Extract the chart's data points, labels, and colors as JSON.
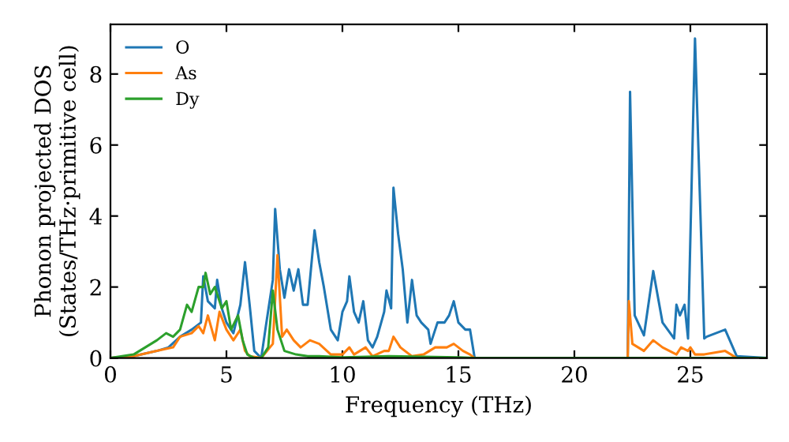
{
  "chart_data": {
    "type": "line",
    "xlabel": "Frequency (THz)",
    "ylabel": "Phonon projected DOS\n(States/THz·primitive cell)",
    "xlim": [
      0,
      28.3
    ],
    "ylim": [
      0,
      9.4
    ],
    "xticks": [
      0,
      5,
      10,
      15,
      20,
      25
    ],
    "yticks": [
      0,
      2,
      4,
      6,
      8
    ],
    "grid": false,
    "legend": "top left",
    "marker": "none",
    "line_style": "solid",
    "series": [
      {
        "name": "O",
        "color": "#1f77b4",
        "x": [
          0,
          1,
          2,
          2.5,
          3,
          3.5,
          3.9,
          4.0,
          4.2,
          4.5,
          4.6,
          4.8,
          5.0,
          5.3,
          5.6,
          5.8,
          6.0,
          6.2,
          6.5,
          6.7,
          7.0,
          7.1,
          7.3,
          7.5,
          7.7,
          7.9,
          8.1,
          8.3,
          8.5,
          8.8,
          9.0,
          9.2,
          9.5,
          9.8,
          10.0,
          10.2,
          10.3,
          10.5,
          10.7,
          10.9,
          11.1,
          11.3,
          11.5,
          11.8,
          11.9,
          12.1,
          12.2,
          12.4,
          12.6,
          12.8,
          13.0,
          13.2,
          13.4,
          13.7,
          13.8,
          14.1,
          14.4,
          14.6,
          14.8,
          15.0,
          15.3,
          15.5,
          15.7,
          22.3,
          22.4,
          22.6,
          23.0,
          23.4,
          23.8,
          24.3,
          24.4,
          24.55,
          24.75,
          24.9,
          25.2,
          25.6,
          25.7,
          26.5,
          27.0,
          28.3
        ],
        "values": [
          0,
          0.05,
          0.2,
          0.3,
          0.6,
          0.8,
          1.0,
          2.3,
          1.6,
          1.4,
          2.2,
          1.4,
          1.0,
          0.7,
          1.5,
          2.7,
          1.5,
          0.2,
          0,
          0.9,
          2.2,
          4.2,
          2.5,
          1.7,
          2.5,
          1.9,
          2.5,
          1.5,
          1.5,
          3.6,
          2.7,
          2.0,
          0.8,
          0.5,
          1.3,
          1.6,
          2.3,
          1.3,
          1.0,
          1.6,
          0.5,
          0.3,
          0.6,
          1.3,
          1.9,
          1.4,
          4.8,
          3.5,
          2.5,
          1.0,
          2.2,
          1.2,
          1.0,
          0.8,
          0.4,
          1.0,
          1.0,
          1.2,
          1.6,
          1.0,
          0.8,
          0.8,
          0,
          0,
          7.5,
          1.2,
          0.64,
          2.45,
          1.0,
          0.55,
          1.5,
          1.2,
          1.5,
          0.55,
          9.0,
          0.55,
          0.6,
          0.8,
          0.05,
          0
        ]
      },
      {
        "name": "As",
        "color": "#ff7f0e",
        "x": [
          0,
          1,
          2,
          2.7,
          3,
          3.5,
          3.8,
          4.0,
          4.2,
          4.5,
          4.7,
          5.0,
          5.3,
          5.6,
          5.8,
          6.0,
          6.5,
          7.0,
          7.2,
          7.4,
          7.6,
          7.9,
          8.2,
          8.6,
          9.0,
          9.5,
          10,
          10.3,
          10.5,
          11,
          11.3,
          11.8,
          12.0,
          12.2,
          12.5,
          13,
          13.5,
          14,
          14.5,
          14.8,
          15.2,
          15.5,
          15.7,
          22.3,
          22.35,
          22.5,
          23.0,
          23.4,
          23.8,
          24.4,
          24.6,
          24.9,
          25.0,
          25.2,
          25.6,
          26.5,
          27.0,
          28.3
        ],
        "values": [
          0,
          0.05,
          0.2,
          0.3,
          0.6,
          0.7,
          0.9,
          0.7,
          1.2,
          0.5,
          1.3,
          0.8,
          0.5,
          0.8,
          0.2,
          0.05,
          0,
          0.4,
          2.9,
          0.6,
          0.8,
          0.5,
          0.3,
          0.5,
          0.4,
          0.1,
          0.1,
          0.3,
          0.1,
          0.3,
          0.05,
          0.2,
          0.2,
          0.6,
          0.3,
          0.05,
          0.1,
          0.3,
          0.3,
          0.4,
          0.2,
          0.1,
          0,
          0,
          1.6,
          0.4,
          0.2,
          0.5,
          0.3,
          0.1,
          0.3,
          0.2,
          0.3,
          0.1,
          0.1,
          0.2,
          0,
          0
        ]
      },
      {
        "name": "Dy",
        "color": "#2ca02c",
        "x": [
          0,
          1,
          1.5,
          2.0,
          2.4,
          2.7,
          3.0,
          3.3,
          3.5,
          3.8,
          4.0,
          4.1,
          4.3,
          4.5,
          4.8,
          5.0,
          5.2,
          5.5,
          5.7,
          5.9,
          6.2,
          6.5,
          6.8,
          7.0,
          7.2,
          7.5,
          8,
          8.5,
          9,
          10,
          12,
          15,
          15.7,
          28.3
        ],
        "values": [
          0,
          0.1,
          0.3,
          0.5,
          0.7,
          0.6,
          0.8,
          1.5,
          1.3,
          2.0,
          2.0,
          2.4,
          1.8,
          2.0,
          1.4,
          1.6,
          0.8,
          1.2,
          0.5,
          0.1,
          0,
          0,
          0.3,
          1.9,
          0.8,
          0.2,
          0.1,
          0.05,
          0.05,
          0.02,
          0.05,
          0.02,
          0,
          0
        ]
      }
    ]
  }
}
